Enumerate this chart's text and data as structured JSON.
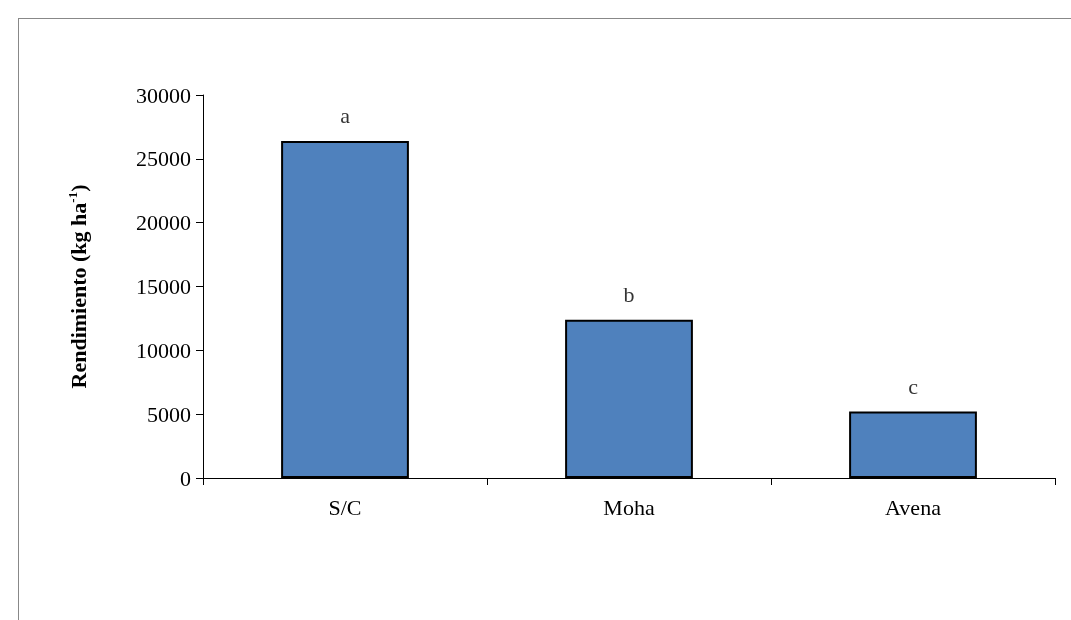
{
  "chart_data": {
    "type": "bar",
    "ylabel": "Rendimiento (kg ha$^{-1}$)",
    "categories": [
      "S/C",
      "Moha",
      "Avena"
    ],
    "values": [
      26400,
      12400,
      5200
    ],
    "color": "#4f81bd",
    "ylim": [
      0,
      30000
    ],
    "yticks": [
      0,
      5000,
      10000,
      15000,
      20000,
      25000,
      30000
    ],
    "grid": false,
    "annotations": [
      {
        "text": "a",
        "x": "S/C",
        "y": 26400
      },
      {
        "text": "b",
        "x": "Moha",
        "y": 12400
      },
      {
        "text": "c",
        "x": "Avena",
        "y": 5200
      }
    ]
  }
}
